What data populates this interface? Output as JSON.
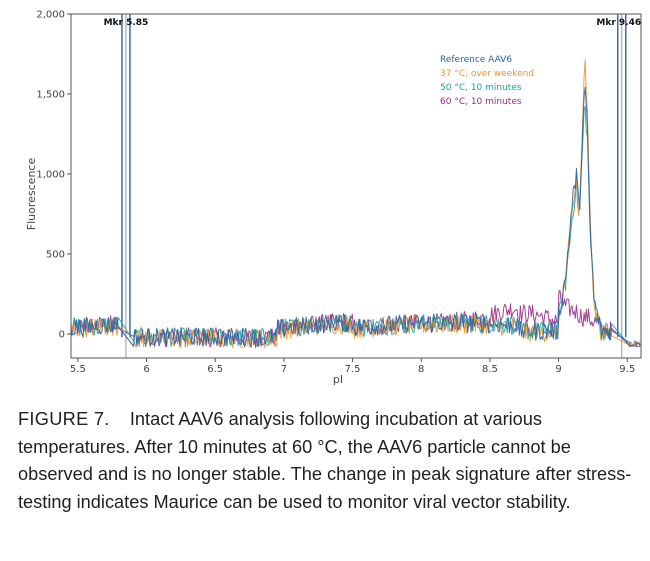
{
  "chart_data": {
    "type": "line",
    "title": "",
    "xlabel": "pI",
    "ylabel": "Fluorescence",
    "xlim": [
      5.45,
      9.6
    ],
    "ylim": [
      -150,
      2000
    ],
    "x_ticks": [
      5.5,
      6,
      6.5,
      7,
      7.5,
      8,
      8.5,
      9,
      9.5
    ],
    "x_tick_labels": [
      "5.5",
      "6",
      "6.5",
      "7",
      "7.5",
      "8",
      "8.5",
      "9",
      "9.5"
    ],
    "y_ticks": [
      0,
      500,
      1000,
      1500,
      2000
    ],
    "y_tick_labels": [
      "0",
      "500",
      "1,000",
      "1,500",
      "2,000"
    ],
    "markers": [
      {
        "label": "Mkr 5.85",
        "x": 5.85
      },
      {
        "label": "Mkr 9.46",
        "x": 9.46
      }
    ],
    "legend_position": "top-right",
    "series": [
      {
        "name": "Reference AAV6",
        "color": "#2b63a8",
        "x": [
          9.0,
          9.05,
          9.1,
          9.13,
          9.15,
          9.17,
          9.19,
          9.21,
          9.23,
          9.26,
          9.3
        ],
        "values": [
          110,
          350,
          820,
          1000,
          760,
          1150,
          1550,
          1280,
          650,
          200,
          60
        ]
      },
      {
        "name": "37 °C, over weekend",
        "color": "#f0932e",
        "x": [
          9.0,
          9.05,
          9.1,
          9.13,
          9.15,
          9.17,
          9.19,
          9.21,
          9.23,
          9.26,
          9.3
        ],
        "values": [
          100,
          330,
          760,
          960,
          720,
          1180,
          1750,
          1350,
          680,
          210,
          60
        ]
      },
      {
        "name": "50 °C, 10 minutes",
        "color": "#1aa59a",
        "x": [
          9.0,
          9.05,
          9.1,
          9.13,
          9.15,
          9.17,
          9.19,
          9.21,
          9.23,
          9.26,
          9.3
        ],
        "values": [
          100,
          320,
          740,
          940,
          700,
          1080,
          1450,
          1220,
          620,
          190,
          55
        ]
      },
      {
        "name": "60 °C, 10 minutes",
        "color": "#9b2c8b",
        "x": [
          9.0,
          9.05,
          9.1,
          9.13,
          9.15,
          9.17,
          9.19,
          9.21,
          9.23,
          9.26,
          9.3
        ],
        "values": [
          230,
          170,
          150,
          140,
          120,
          110,
          100,
          110,
          90,
          80,
          60
        ]
      }
    ]
  },
  "caption": {
    "figure_label": "FIGURE 7.",
    "text": "Intact AAV6 analysis following incubation at various temperatures. After 10 minutes at 60 °C, the AAV6 particle cannot be observed and is no longer stable. The change in peak signature after stress-testing indicates Maurice can be used to monitor viral vector stability."
  }
}
